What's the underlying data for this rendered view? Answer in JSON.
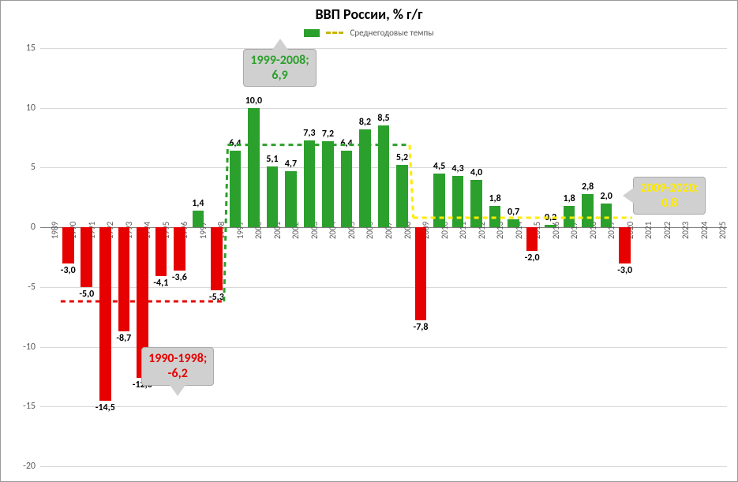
{
  "title": "ВВП России, % г/г",
  "title_fontsize": 18,
  "legend": {
    "series_label": "",
    "avg_label": "Среднегодовые темпы",
    "bar_color": "#2ca02c",
    "dash_color": "#c9b500"
  },
  "chart": {
    "type": "bar",
    "background_color": "#ffffff",
    "grid_color": "#d9d9d9",
    "axis_color": "#808080",
    "ylim": [
      -20,
      15
    ],
    "ytick_step": 5,
    "yticks": [
      -20,
      -15,
      -10,
      -5,
      0,
      5,
      10,
      15
    ],
    "years": [
      1989,
      1990,
      1991,
      1992,
      1993,
      1994,
      1995,
      1996,
      1997,
      1998,
      1999,
      2000,
      2001,
      2002,
      2003,
      2004,
      2005,
      2006,
      2007,
      2008,
      2009,
      2010,
      2011,
      2012,
      2013,
      2014,
      2015,
      2016,
      2017,
      2018,
      2019,
      2020,
      2021,
      2022,
      2023,
      2024,
      2025
    ],
    "values": [
      null,
      -3.0,
      -5.0,
      -14.5,
      -8.7,
      -12.6,
      -4.1,
      -3.6,
      1.4,
      -5.3,
      6.4,
      10.0,
      5.1,
      4.7,
      7.3,
      7.2,
      6.4,
      8.2,
      8.5,
      5.2,
      -7.8,
      4.5,
      4.3,
      4.0,
      1.8,
      0.7,
      -2.0,
      0.2,
      1.8,
      2.8,
      2.0,
      -3.0,
      null,
      null,
      null,
      null,
      null
    ],
    "labels": [
      null,
      "-3,0",
      "-5,0",
      "-14,5",
      "-8,7",
      "-12,6",
      "-4,1",
      "-3,6",
      "1,4",
      "-5,3",
      "6,4",
      "10,0",
      "5,1",
      "4,7",
      "7,3",
      "7,2",
      "6,4",
      "8,2",
      "8,5",
      "5,2",
      "-7,8",
      "4,5",
      "4,3",
      "4,0",
      "1,8",
      "0,7",
      "-2,0",
      "0,2",
      "1,8",
      "2,8",
      "2,0",
      "-3,0",
      null,
      null,
      null,
      null,
      null
    ],
    "positive_color": "#2ca02c",
    "negative_color": "#e60000",
    "bar_width": 0.62,
    "label_fontsize": 12
  },
  "averages": [
    {
      "from_year": 1990,
      "to_year": 1998,
      "value": -6.2,
      "color": "#e60000",
      "dash": "6,5",
      "width": 3
    },
    {
      "from_year": 1999,
      "to_year": 2008,
      "value": 6.9,
      "color": "#2ca02c",
      "dash": "6,5",
      "width": 3
    },
    {
      "from_year": 2009,
      "to_year": 2020,
      "value": 0.8,
      "color": "#ffeb00",
      "dash": "6,5",
      "width": 3
    }
  ],
  "callouts": [
    {
      "text_top": "1990-1998;",
      "text_bottom": "-6,2",
      "color": "#e60000",
      "fontsize": 16,
      "x_year": 1996.5,
      "y": -11.5,
      "pointer": "top"
    },
    {
      "text_top": "1999-2008;",
      "text_bottom": "6,9",
      "color": "#2ca02c",
      "fontsize": 16,
      "x_year": 2002,
      "y": 13.5,
      "pointer": "bottom"
    },
    {
      "text_top": "2009-2020;",
      "text_bottom": "0,8",
      "color": "#ffeb00",
      "fontsize": 16,
      "x_year": 2023,
      "y": 2.8,
      "pointer": "left"
    }
  ]
}
